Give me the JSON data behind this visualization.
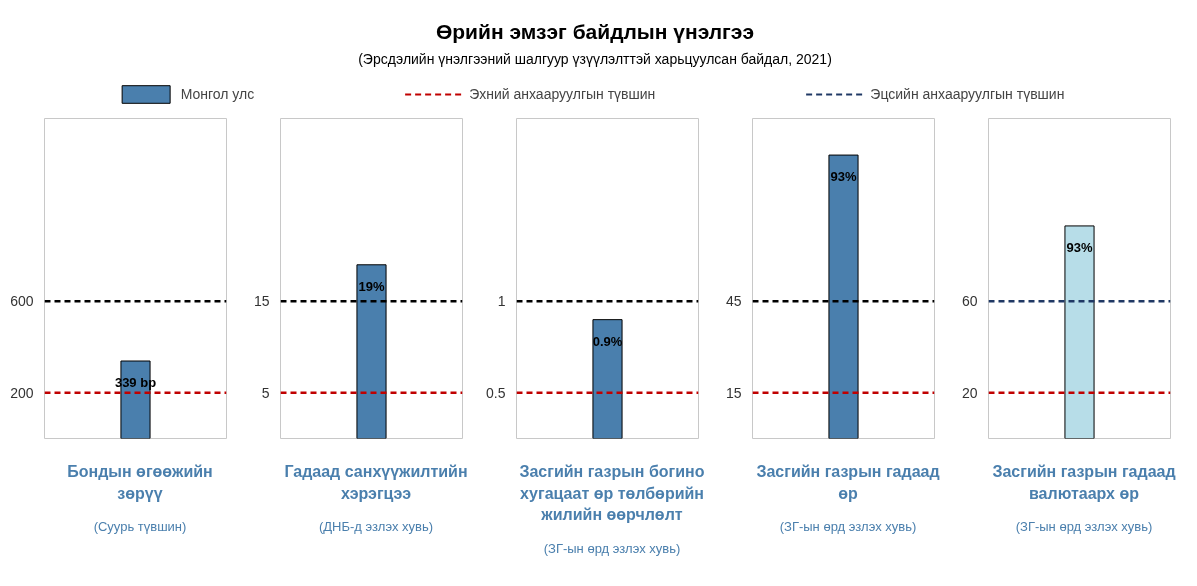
{
  "chart_data": [
    {
      "type": "other",
      "title": "Өрийн эмзэг байдлын үнэлгээ",
      "subtitle": "(Эрсдэлийн үнэлгээний шалгуур үзүүлэлттэй харьцуулсан байдал, 2021)"
    },
    {
      "type": "bar",
      "legend": "top",
      "categories": [
        null
      ],
      "series": [
        {
          "name": "Монгол улс",
          "color": "#4a7fad",
          "values": [
            339
          ]
        }
      ],
      "value_labels": [
        "339 bp"
      ],
      "ylim": [
        0,
        1400
      ],
      "yticks": [
        200,
        600
      ],
      "ref_lines": [
        {
          "axis": "y",
          "value": 200,
          "label": "Эхний анхааруулгын түвшин",
          "color": "#c00000",
          "line_style": "dashed"
        },
        {
          "axis": "y",
          "value": 600,
          "color": "#000000",
          "line_style": "dashed"
        }
      ],
      "xlabel": "Бондын өгөөжийн зөрүү",
      "annotations": [
        "(Суурь түвшин)"
      ]
    },
    {
      "type": "bar",
      "categories": [
        null
      ],
      "series": [
        {
          "color": "#4a7fad",
          "values": [
            19
          ]
        }
      ],
      "value_labels": [
        "19%"
      ],
      "ylim": [
        0,
        35
      ],
      "yticks": [
        5,
        15
      ],
      "ref_lines": [
        {
          "axis": "y",
          "value": 5,
          "color": "#c00000",
          "line_style": "dashed"
        },
        {
          "axis": "y",
          "value": 15,
          "color": "#000000",
          "line_style": "dashed"
        }
      ],
      "xlabel": "Гадаад санхүүжилтийн хэрэгцээ",
      "annotations": [
        "(ДНБ-д эзлэх хувь)"
      ]
    },
    {
      "type": "bar",
      "categories": [
        null
      ],
      "series": [
        {
          "color": "#4a7fad",
          "values": [
            0.9
          ]
        }
      ],
      "value_labels": [
        "0.9%"
      ],
      "ylim": [
        0.25,
        2
      ],
      "yticks": [
        0.5,
        1
      ],
      "ref_lines": [
        {
          "axis": "y",
          "value": 0.5,
          "color": "#c00000",
          "line_style": "dashed"
        },
        {
          "axis": "y",
          "value": 1,
          "color": "#000000",
          "line_style": "dashed"
        }
      ],
      "xlabel": "Засгийн газрын богино хугацаат өр төлбөрийн жилийн өөрчлөлт",
      "annotations": [
        "(ЗГ-ын өрд эзлэх хувь)"
      ]
    },
    {
      "type": "bar",
      "categories": [
        null
      ],
      "series": [
        {
          "color": "#4a7fad",
          "values": [
            93
          ]
        }
      ],
      "value_labels": [
        "93%"
      ],
      "ylim": [
        0,
        105
      ],
      "yticks": [
        15,
        45
      ],
      "ref_lines": [
        {
          "axis": "y",
          "value": 15,
          "color": "#c00000",
          "line_style": "dashed"
        },
        {
          "axis": "y",
          "value": 45,
          "color": "#000000",
          "line_style": "dashed"
        }
      ],
      "xlabel": "Засгийн газрын гадаад өр",
      "annotations": [
        "(ЗГ-ын өрд эзлэх хувь)"
      ]
    },
    {
      "type": "bar",
      "categories": [
        null
      ],
      "series": [
        {
          "color": "#b7dde8",
          "values": [
            93
          ]
        }
      ],
      "value_labels": [
        "93%"
      ],
      "ylim": [
        0,
        140
      ],
      "yticks": [
        20,
        60
      ],
      "ref_lines": [
        {
          "axis": "y",
          "value": 20,
          "color": "#c00000",
          "line_style": "dashed"
        },
        {
          "axis": "y",
          "value": 60,
          "label": "Эцсийн анхааруулгын түвшин",
          "color": "#1f3864",
          "line_style": "dashed"
        }
      ],
      "xlabel": "Засгийн газрын гадаад валютаарх өр",
      "annotations": [
        "(ЗГ-ын өрд эзлэх хувь)"
      ]
    }
  ]
}
